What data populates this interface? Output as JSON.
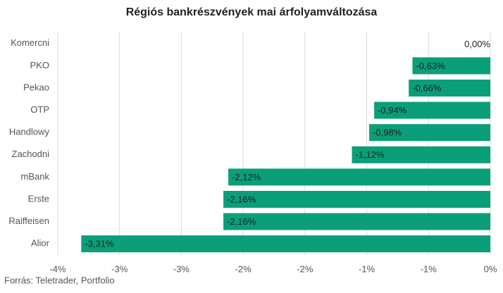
{
  "chart_data": {
    "type": "hbar",
    "title": "Régiós bankrészvények mai árfolyamváltozása",
    "source": "Forrás: Teletrader, Portfolio",
    "categories": [
      "Komercni",
      "PKO",
      "Pekao",
      "OTP",
      "Handlowy",
      "Zachodni",
      "mBank",
      "Erste",
      "Raiffeisen",
      "Alior"
    ],
    "values": [
      0,
      -0.63,
      -0.66,
      -0.94,
      -0.98,
      -1.12,
      -2.12,
      -2.16,
      -2.16,
      -3.31
    ],
    "value_labels": [
      "0,00%",
      "-0,63%",
      "-0,66%",
      "-0,94%",
      "-0,98%",
      "-1,12%",
      "-2,12%",
      "-2,16%",
      "-2,16%",
      "-3,31%"
    ],
    "color": "#0a9f78",
    "xlim": [
      -3.5,
      0
    ],
    "xticks": [
      {
        "value": -3.5,
        "label": "-4%"
      },
      {
        "value": -3,
        "label": "-3%"
      },
      {
        "value": -2.5,
        "label": "-3%"
      },
      {
        "value": -2,
        "label": "-2%"
      },
      {
        "value": -1.5,
        "label": "-2%"
      },
      {
        "value": -1,
        "label": "-1%"
      },
      {
        "value": -0.5,
        "label": "-1%"
      },
      {
        "value": 0,
        "label": "0%"
      }
    ],
    "grid": true
  }
}
